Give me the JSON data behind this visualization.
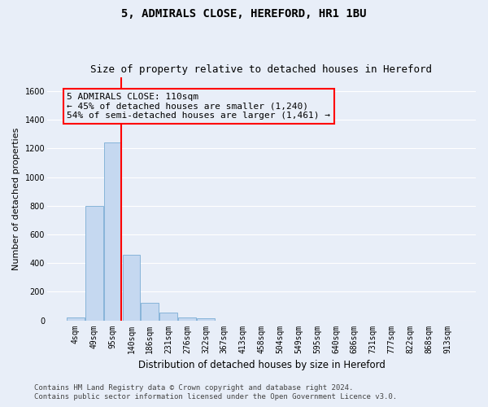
{
  "title": "5, ADMIRALS CLOSE, HEREFORD, HR1 1BU",
  "subtitle": "Size of property relative to detached houses in Hereford",
  "xlabel": "Distribution of detached houses by size in Hereford",
  "ylabel": "Number of detached properties",
  "bar_color": "#c5d8f0",
  "bar_edgecolor": "#7aadd4",
  "bar_linewidth": 0.6,
  "categories": [
    "4sqm",
    "49sqm",
    "95sqm",
    "140sqm",
    "186sqm",
    "231sqm",
    "276sqm",
    "322sqm",
    "367sqm",
    "413sqm",
    "458sqm",
    "504sqm",
    "549sqm",
    "595sqm",
    "640sqm",
    "686sqm",
    "731sqm",
    "777sqm",
    "822sqm",
    "868sqm",
    "913sqm"
  ],
  "values": [
    20,
    800,
    1240,
    460,
    120,
    55,
    22,
    12,
    0,
    0,
    0,
    0,
    0,
    0,
    0,
    0,
    0,
    0,
    0,
    0,
    0
  ],
  "ylim": [
    0,
    1700
  ],
  "yticks": [
    0,
    200,
    400,
    600,
    800,
    1000,
    1200,
    1400,
    1600
  ],
  "red_line_x": 2.47,
  "annotation_title": "5 ADMIRALS CLOSE: 110sqm",
  "annotation_line2": "← 45% of detached houses are smaller (1,240)",
  "annotation_line3": "54% of semi-detached houses are larger (1,461) →",
  "footer_line1": "Contains HM Land Registry data © Crown copyright and database right 2024.",
  "footer_line2": "Contains public sector information licensed under the Open Government Licence v3.0.",
  "background_color": "#e8eef8",
  "grid_color": "#ffffff",
  "title_fontsize": 10,
  "subtitle_fontsize": 9,
  "tick_fontsize": 7,
  "ylabel_fontsize": 8,
  "xlabel_fontsize": 8.5,
  "footer_fontsize": 6.5,
  "ann_fontsize": 8
}
